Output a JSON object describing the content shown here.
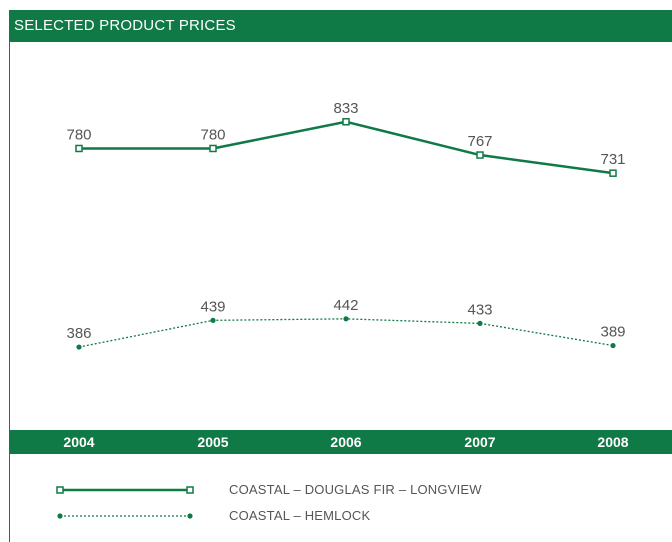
{
  "header": {
    "title": "SELECTED PRODUCT PRICES"
  },
  "colors": {
    "brand_green": "#0f7a45",
    "label_gray": "#555555"
  },
  "chart_data": {
    "type": "line",
    "title": "SELECTED PRODUCT PRICES",
    "categories": [
      "2004",
      "2005",
      "2006",
      "2007",
      "2008"
    ],
    "ylim": [
      0,
      900
    ],
    "grid": false,
    "legend_position": "bottom",
    "series": [
      {
        "name": "COASTAL – DOUGLAS FIR – LONGVIEW",
        "values": [
          780,
          780,
          833,
          767,
          731
        ],
        "line_style": "solid",
        "marker": "open-square",
        "color": "#0f7a45"
      },
      {
        "name": "COASTAL – HEMLOCK",
        "values": [
          386,
          439,
          442,
          433,
          389
        ],
        "line_style": "dotted",
        "marker": "filled-circle",
        "color": "#0f7a45"
      }
    ]
  }
}
